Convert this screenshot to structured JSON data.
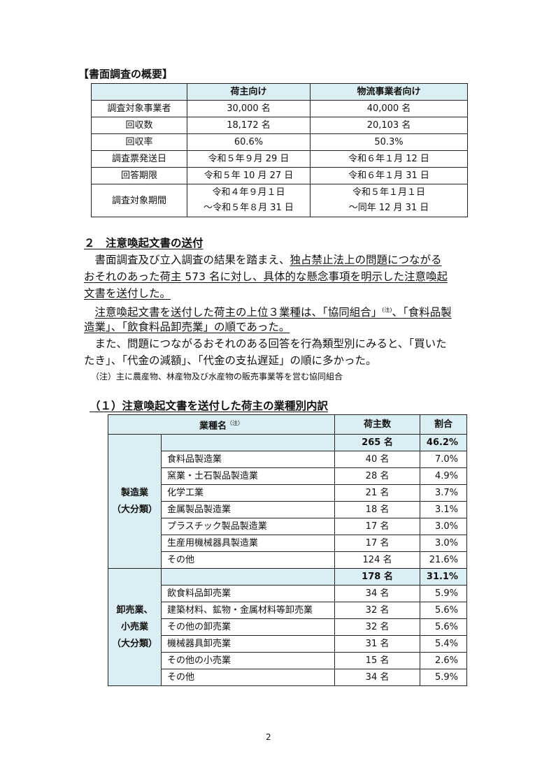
{
  "survey_overview": {
    "title": "【書面調査の概要】",
    "columns": [
      "",
      "荷主向け",
      "物流事業者向け"
    ],
    "rows": [
      {
        "label": "調査対象事業者",
        "shipper": "30,000 名",
        "logistics": "40,000 名"
      },
      {
        "label": "回収数",
        "shipper": "18,172 名",
        "logistics": "20,103 名"
      },
      {
        "label": "回収率",
        "shipper": "60.6%",
        "logistics": "50.3%"
      },
      {
        "label": "調査票発送日",
        "shipper": "令和５年９月 29 日",
        "logistics": "令和６年１月 12 日"
      },
      {
        "label": "回答期限",
        "shipper": "令和５年 10 月 27 日",
        "logistics": "令和６年１月 31 日"
      },
      {
        "label": "調査対象期間",
        "shipper": "令和４年９月１日",
        "shipper2": "～令和５年８月 31 日",
        "logistics": "令和５年１月１日",
        "logistics2": "～同年 12 月 31 日"
      }
    ]
  },
  "section2": {
    "heading": "２　注意喚起文書の送付",
    "p1": {
      "a": "　書面調査及び立入調査の結果を踏まえ、",
      "b": "独占禁止法上の問題につながる",
      "c": "おそれのあった荷主 573 名に対し、具体的な懸念事項を明示した注意喚起",
      "d": "文書を送付した。"
    },
    "p2": {
      "a": "注意喚起文書を送付した荷主の上位３業種は、「協同組合」",
      "note_mark": "(注)",
      "b": "、「食料品製",
      "c": "造業」、「飲食料品卸売業」の順であった。"
    },
    "p3": {
      "a": "　また、問題につながるおそれのある回答を行為類型別にみると、「買いた",
      "b": "たき」、「代金の減額」、「代金の支払遅延」の順に多かった。"
    },
    "note": "（注）主に農産物、林産物及び水産物の販売事業等を営む協同組合"
  },
  "breakdown": {
    "heading": "（１）注意喚起文書を送付した荷主の業種別内訳",
    "col_industry": "業種名",
    "col_note_mark": "（注）",
    "col_count": "荷主数",
    "col_ratio": "割合",
    "groups": [
      {
        "label1": "製造業",
        "label2": "（大分類）",
        "label3": "",
        "total_count": "265 名",
        "total_ratio": "46.2%",
        "items": [
          {
            "name": "食料品製造業",
            "count": "40 名",
            "ratio": "7.0%"
          },
          {
            "name": "窯業・土石製品製造業",
            "count": "28 名",
            "ratio": "4.9%"
          },
          {
            "name": "化学工業",
            "count": "21 名",
            "ratio": "3.7%"
          },
          {
            "name": "金属製品製造業",
            "count": "18 名",
            "ratio": "3.1%"
          },
          {
            "name": "プラスチック製品製造業",
            "count": "17 名",
            "ratio": "3.0%"
          },
          {
            "name": "生産用機械器具製造業",
            "count": "17 名",
            "ratio": "3.0%"
          },
          {
            "name": "その他",
            "count": "124 名",
            "ratio": "21.6%"
          }
        ]
      },
      {
        "label1": "卸売業、",
        "label2": "小売業",
        "label3": "（大分類）",
        "total_count": "178 名",
        "total_ratio": "31.1%",
        "items": [
          {
            "name": "飲食料品卸売業",
            "count": "34 名",
            "ratio": "5.9%"
          },
          {
            "name": "建築材料、鉱物・金属材料等卸売業",
            "count": "32 名",
            "ratio": "5.6%"
          },
          {
            "name": "その他の卸売業",
            "count": "32 名",
            "ratio": "5.6%"
          },
          {
            "name": "機械器具卸売業",
            "count": "31 名",
            "ratio": "5.4%"
          },
          {
            "name": "その他の小売業",
            "count": "15 名",
            "ratio": "2.6%"
          },
          {
            "name": "その他",
            "count": "34 名",
            "ratio": "5.9%"
          }
        ]
      }
    ]
  },
  "page_number": "2"
}
